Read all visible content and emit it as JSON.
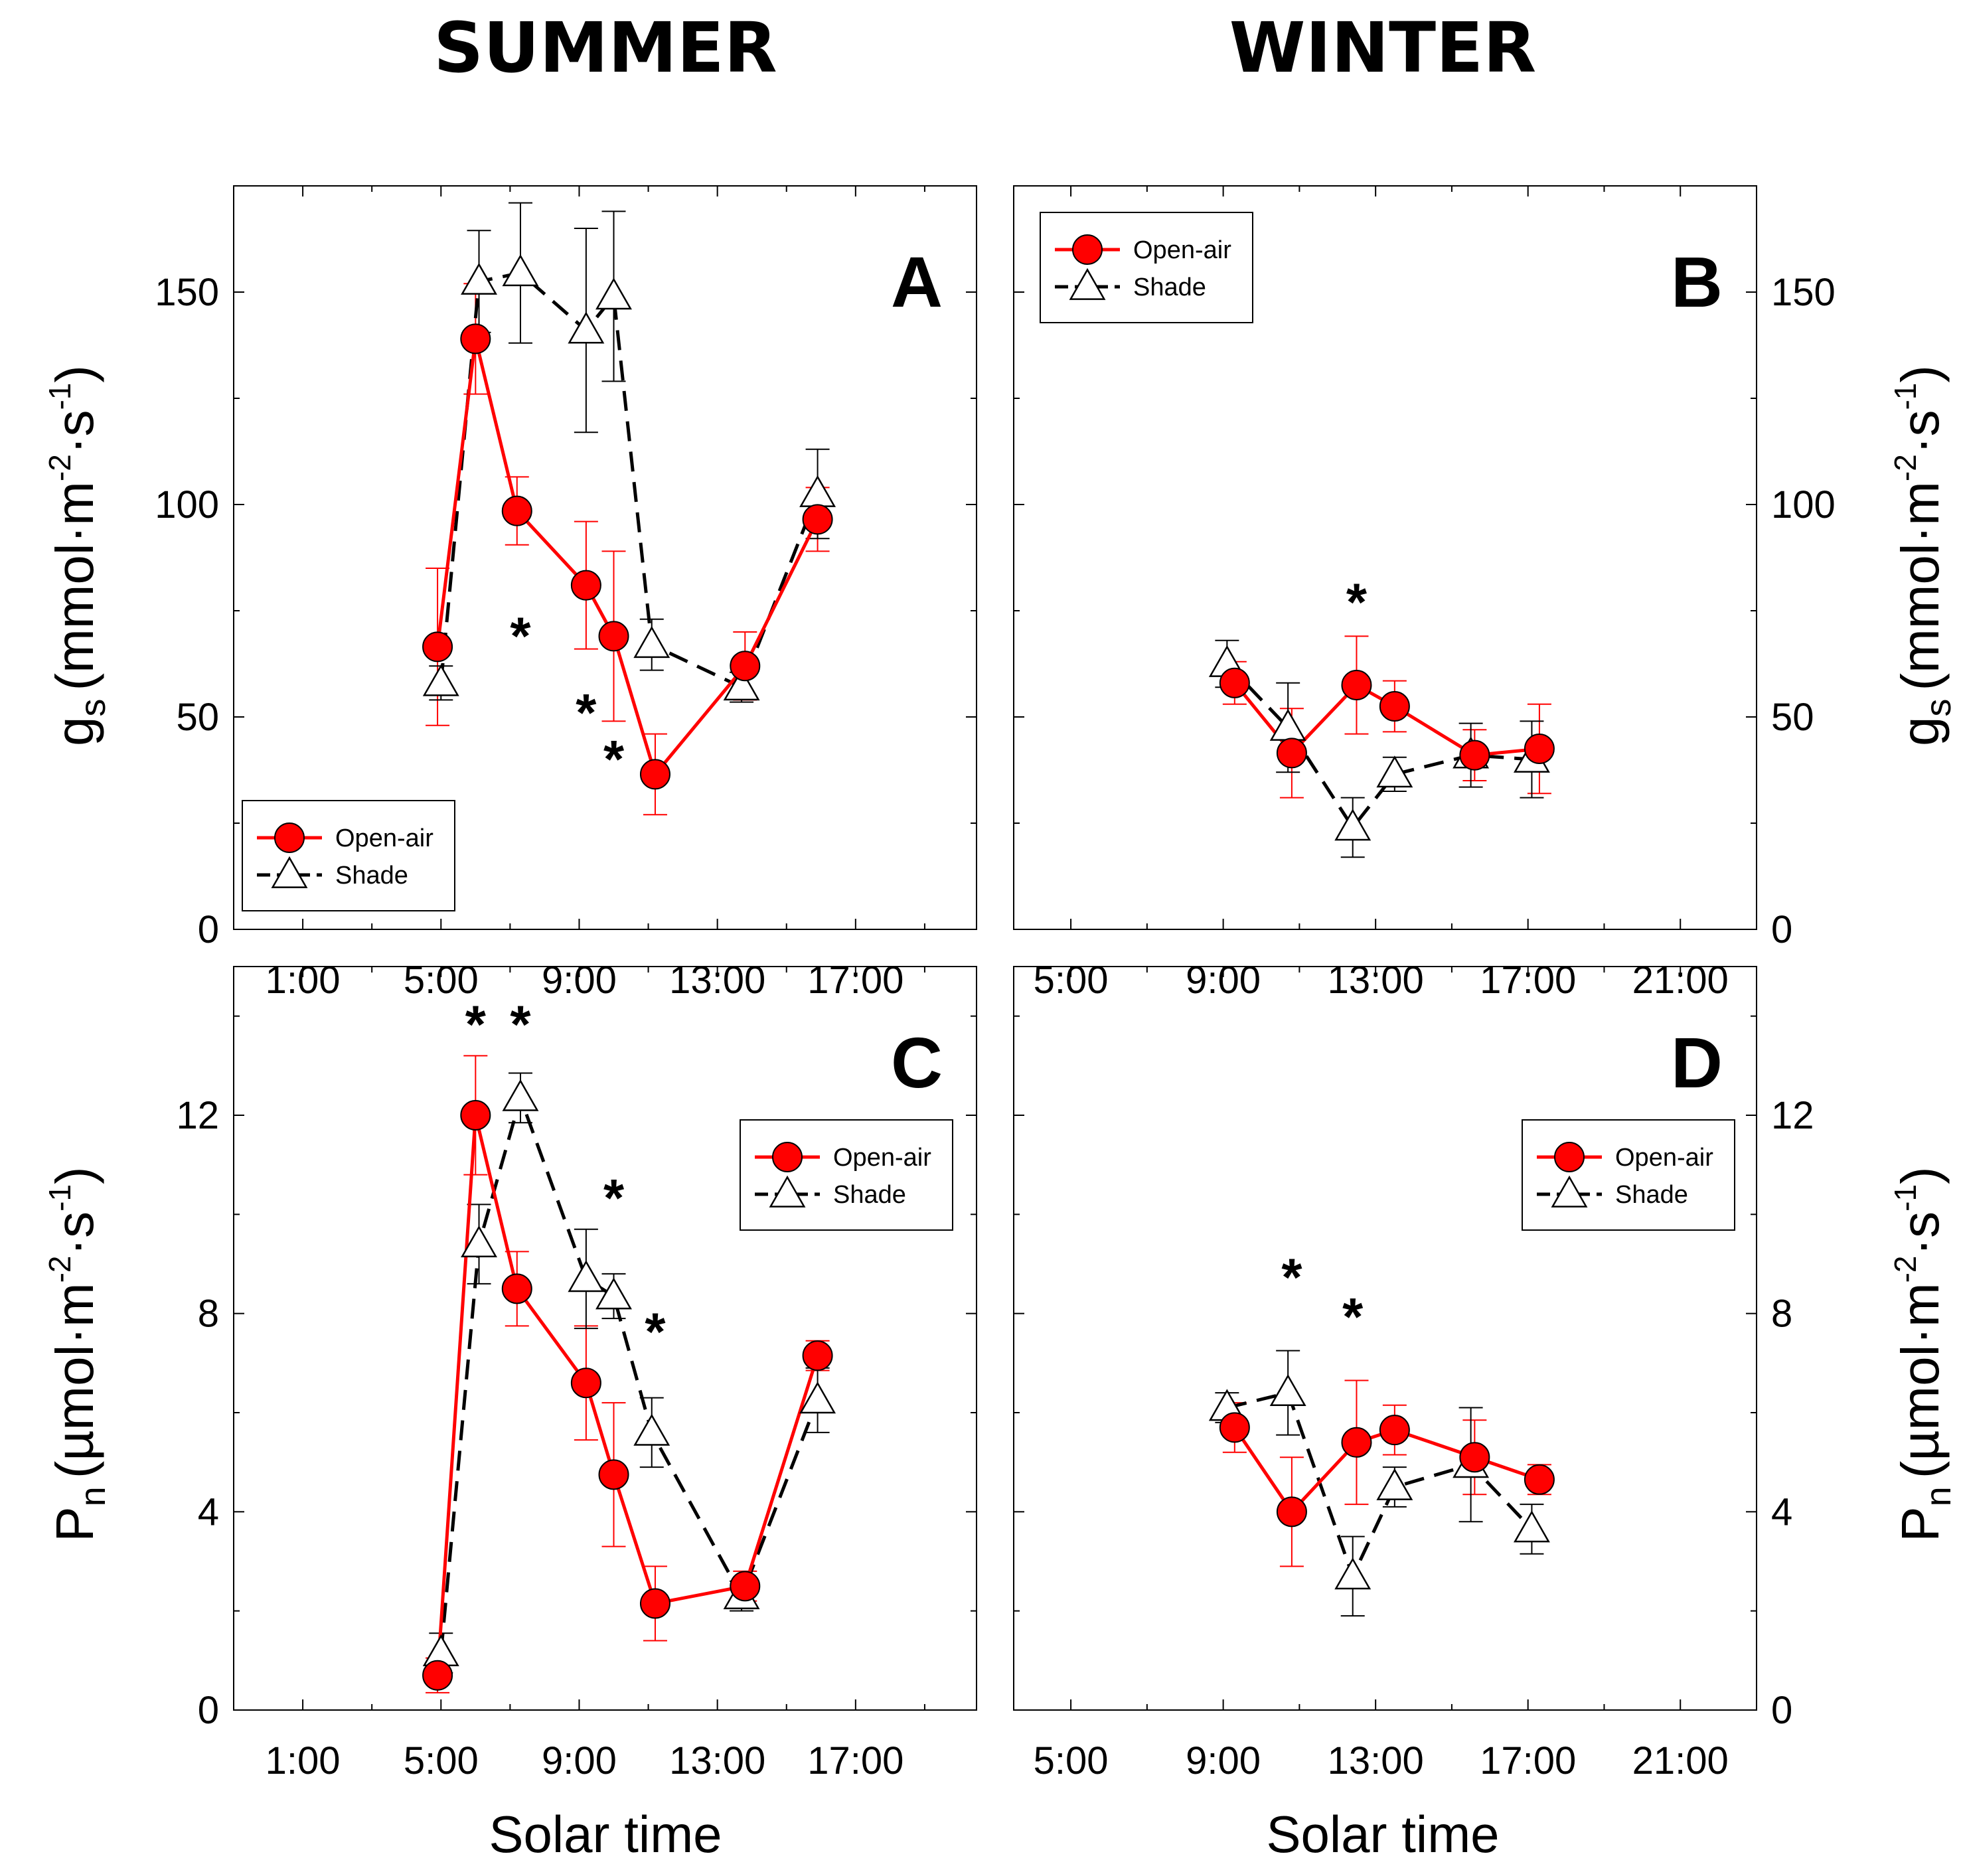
{
  "header": {
    "left_title": "SUMMER",
    "right_title": "WINTER"
  },
  "axis_labels": {
    "xlabel": "Solar time",
    "gs_main": "g",
    "gs_sub": "s",
    "gs_open": "(mmol·m",
    "gs_exp1": "-2",
    "gs_mid": "·s",
    "gs_exp2": "-1",
    "gs_close": ")",
    "pn_main": "P",
    "pn_sub": "n",
    "pn_open": "(µmol·m",
    "pn_exp1": "-2",
    "pn_mid": "·s",
    "pn_exp2": "-1",
    "pn_close": ")"
  },
  "legend": {
    "open_air": "Open-air",
    "shade": "Shade"
  },
  "colors": {
    "open_air": "#ff0000",
    "shade": "#000000"
  },
  "chart_data": [
    {
      "panel": "A",
      "type": "line",
      "season": "SUMMER",
      "variable": "gs",
      "xlim": [
        -1,
        20.5
      ],
      "xticks": [
        "1:00",
        "5:00",
        "9:00",
        "13:00",
        "17:00"
      ],
      "xtick_values": [
        1,
        5,
        9,
        13,
        17
      ],
      "ylim": [
        0,
        175
      ],
      "yticks": [
        "0",
        "50",
        "100",
        "150"
      ],
      "ytick_values": [
        0,
        50,
        100,
        150
      ],
      "legend_position": "bottom-left",
      "series": [
        {
          "name": "Open-air",
          "x": [
            4.9,
            6.0,
            7.2,
            9.2,
            10.0,
            11.2,
            13.8,
            15.9
          ],
          "y": [
            66.5,
            139,
            98.5,
            81,
            69,
            36.5,
            62,
            96.5
          ],
          "err": [
            18.5,
            13,
            8,
            15,
            20,
            9.5,
            8,
            7.5
          ]
        },
        {
          "name": "Shade",
          "x": [
            5.0,
            6.1,
            7.3,
            9.2,
            10.0,
            11.1,
            13.7,
            15.9
          ],
          "y": [
            58,
            152.5,
            154.5,
            141,
            149,
            67,
            57,
            102.5
          ],
          "err": [
            4,
            12,
            16.5,
            24,
            20,
            6,
            3.5,
            10.5
          ]
        }
      ],
      "significance": [
        {
          "label": "*",
          "x": 7.3,
          "y": 71
        },
        {
          "label": "*",
          "x": 9.2,
          "y": 53
        },
        {
          "label": "*",
          "x": 10.0,
          "y": 42
        }
      ]
    },
    {
      "panel": "B",
      "type": "line",
      "season": "WINTER",
      "variable": "gs",
      "xlim": [
        3.5,
        23
      ],
      "xticks": [
        "5:00",
        "9:00",
        "13:00",
        "17:00",
        "21:00"
      ],
      "xtick_values": [
        5,
        9,
        13,
        17,
        21
      ],
      "ylim": [
        0,
        175
      ],
      "yticks": [
        "0",
        "50",
        "100",
        "150"
      ],
      "ytick_values": [
        0,
        50,
        100,
        150
      ],
      "legend_position": "top-left",
      "series": [
        {
          "name": "Open-air",
          "x": [
            9.3,
            10.8,
            12.5,
            13.5,
            15.6,
            17.3
          ],
          "y": [
            58,
            41.5,
            57.5,
            52.5,
            41,
            42.5
          ],
          "err": [
            5,
            10.5,
            11.5,
            6,
            6,
            10.5
          ]
        },
        {
          "name": "Shade",
          "x": [
            9.1,
            10.7,
            12.4,
            13.5,
            15.5,
            17.1
          ],
          "y": [
            62.5,
            47.5,
            24,
            36.5,
            41,
            40
          ],
          "err": [
            5.5,
            10.5,
            7,
            4,
            7.5,
            9
          ]
        }
      ],
      "significance": [
        {
          "label": "*",
          "x": 12.5,
          "y": 79
        }
      ]
    },
    {
      "panel": "C",
      "type": "line",
      "season": "SUMMER",
      "variable": "Pn",
      "xlim": [
        -1,
        20.5
      ],
      "xticks": [
        "1:00",
        "5:00",
        "9:00",
        "13:00",
        "17:00"
      ],
      "xtick_values": [
        1,
        5,
        9,
        13,
        17
      ],
      "ylim": [
        0,
        15
      ],
      "yticks": [
        "0",
        "4",
        "8",
        "12"
      ],
      "ytick_values": [
        0,
        4,
        8,
        12
      ],
      "legend_position": "top-right",
      "series": [
        {
          "name": "Open-air",
          "x": [
            4.9,
            6.0,
            7.2,
            9.2,
            10.0,
            11.2,
            13.8,
            15.9
          ],
          "y": [
            0.7,
            12.0,
            8.5,
            6.6,
            4.75,
            2.15,
            2.5,
            7.15
          ],
          "err": [
            0.35,
            1.2,
            0.75,
            1.15,
            1.45,
            0.75,
            0.3,
            0.3
          ]
        },
        {
          "name": "Shade",
          "x": [
            5.0,
            6.1,
            7.3,
            9.2,
            10.0,
            11.1,
            13.7,
            15.9
          ],
          "y": [
            1.15,
            9.4,
            12.35,
            8.7,
            8.35,
            5.6,
            2.3,
            6.25
          ],
          "err": [
            0.4,
            0.8,
            0.5,
            1.0,
            0.45,
            0.7,
            0.3,
            0.65
          ]
        }
      ],
      "significance": [
        {
          "label": "*",
          "x": 6.0,
          "y": 14.0
        },
        {
          "label": "*",
          "x": 7.3,
          "y": 14.0
        },
        {
          "label": "*",
          "x": 10.0,
          "y": 10.5
        },
        {
          "label": "*",
          "x": 11.2,
          "y": 7.8
        }
      ]
    },
    {
      "panel": "D",
      "type": "line",
      "season": "WINTER",
      "variable": "Pn",
      "xlim": [
        3.5,
        23
      ],
      "xticks": [
        "5:00",
        "9:00",
        "13:00",
        "17:00",
        "21:00"
      ],
      "xtick_values": [
        5,
        9,
        13,
        17,
        21
      ],
      "ylim": [
        0,
        15
      ],
      "yticks": [
        "0",
        "4",
        "8",
        "12"
      ],
      "ytick_values": [
        0,
        4,
        8,
        12
      ],
      "legend_position": "top-right",
      "series": [
        {
          "name": "Open-air",
          "x": [
            9.3,
            10.8,
            12.5,
            13.5,
            15.6,
            17.3
          ],
          "y": [
            5.7,
            4.0,
            5.4,
            5.65,
            5.1,
            4.65
          ],
          "err": [
            0.5,
            1.1,
            1.25,
            0.5,
            0.75,
            0.3
          ]
        },
        {
          "name": "Shade",
          "x": [
            9.1,
            10.7,
            12.4,
            13.5,
            15.5,
            17.1
          ],
          "y": [
            6.1,
            6.4,
            2.7,
            4.5,
            4.95,
            3.65
          ],
          "err": [
            0.3,
            0.85,
            0.8,
            0.4,
            1.15,
            0.5
          ]
        }
      ],
      "significance": [
        {
          "label": "*",
          "x": 10.8,
          "y": 8.9
        },
        {
          "label": "*",
          "x": 12.4,
          "y": 8.1
        }
      ]
    }
  ]
}
